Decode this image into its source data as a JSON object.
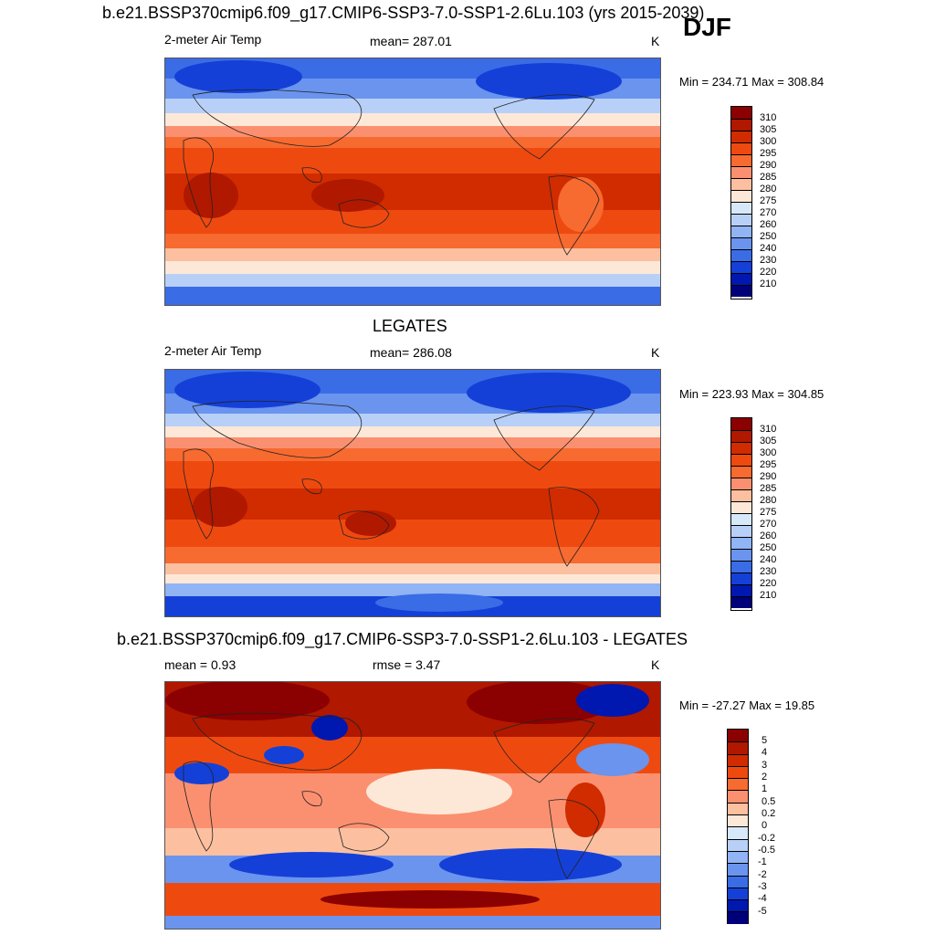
{
  "season": "DJF",
  "panels": [
    {
      "id": "model",
      "title": "b.e21.BSSP370cmip6.f09_g17.CMIP6-SSP3-7.0-SSP1-2.6Lu.103 (yrs 2015-2039)",
      "left_label": "2-meter Air Temp",
      "center_label": "mean= 287.01",
      "units": "K",
      "minmax": "Min = 234.71 Max = 308.84"
    },
    {
      "id": "obs",
      "title": "LEGATES",
      "left_label": "2-meter Air Temp",
      "center_label": "mean= 286.08",
      "units": "K",
      "minmax": "Min = 223.93 Max = 304.85"
    },
    {
      "id": "diff",
      "title": "b.e21.BSSP370cmip6.f09_g17.CMIP6-SSP3-7.0-SSP1-2.6Lu.103 - LEGATES",
      "left_label": "mean =   0.93",
      "center_label": "rmse =   3.47",
      "units": "K",
      "minmax": "Min = -27.27 Max =  19.85"
    }
  ],
  "colorbars": {
    "absolute": {
      "labels": [
        "310",
        "305",
        "300",
        "295",
        "290",
        "285",
        "280",
        "275",
        "270",
        "260",
        "250",
        "240",
        "230",
        "220",
        "210"
      ],
      "colors": [
        "#8b0000",
        "#b01800",
        "#d02c00",
        "#ee4a10",
        "#f76a30",
        "#fb9070",
        "#fcc0a0",
        "#fde8d8",
        "#d8e8fb",
        "#b8d0f8",
        "#90b4f4",
        "#6a94ee",
        "#3a6ce6",
        "#1440d8",
        "#0018b0",
        "#00007a"
      ]
    },
    "difference": {
      "labels": [
        "5",
        "4",
        "3",
        "2",
        "1",
        "0.5",
        "0.2",
        "0",
        "-0.2",
        "-0.5",
        "-1",
        "-2",
        "-3",
        "-4",
        "-5"
      ],
      "colors": [
        "#8b0000",
        "#b01800",
        "#d02c00",
        "#ee4a10",
        "#f76a30",
        "#fb9070",
        "#fcc0a0",
        "#fde8d8",
        "#d8e8fb",
        "#b8d0f8",
        "#90b4f4",
        "#6a94ee",
        "#3a6ce6",
        "#1440d8",
        "#0018b0",
        "#00007a"
      ]
    }
  }
}
